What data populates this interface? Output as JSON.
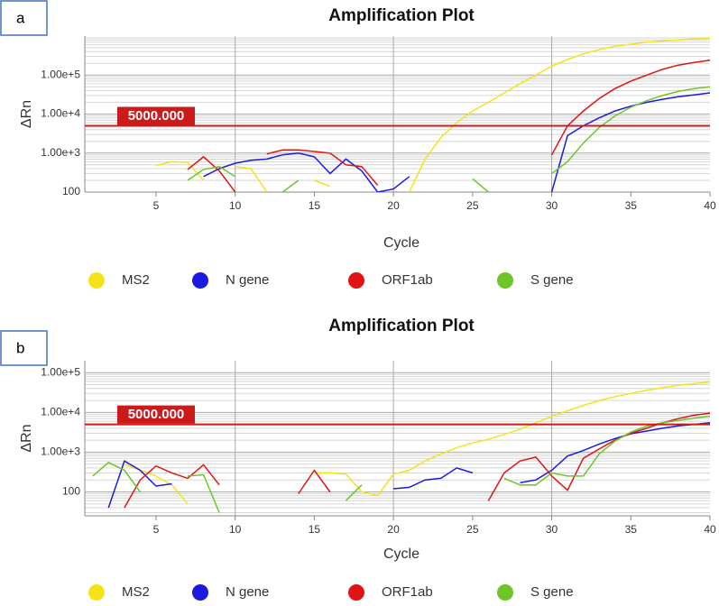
{
  "chart_data": [
    {
      "type": "line",
      "panel": "a",
      "title": "Amplification Plot",
      "xlabel": "Cycle",
      "ylabel": "ΔRn",
      "log_y": true,
      "grid": true,
      "legend": "bottom",
      "xlim": [
        0.5,
        40
      ],
      "xticks": [
        5,
        10,
        15,
        20,
        25,
        30,
        35,
        40
      ],
      "xgrid": [
        10,
        20,
        30
      ],
      "ylim": [
        100,
        1000000
      ],
      "yticks": [
        100,
        {
          "value": 1000,
          "label": "1.00e+3"
        },
        {
          "value": 10000,
          "label": "1.00e+4"
        },
        {
          "value": 100000,
          "label": "1.00e+5"
        }
      ],
      "threshold": {
        "value": 5000,
        "label": "5000.000",
        "color": "#cc1a1a"
      },
      "x": [
        1,
        2,
        3,
        4,
        5,
        6,
        7,
        8,
        9,
        10,
        11,
        12,
        13,
        14,
        15,
        16,
        17,
        18,
        19,
        20,
        21,
        22,
        23,
        24,
        25,
        26,
        27,
        28,
        29,
        30,
        31,
        32,
        33,
        34,
        35,
        36,
        37,
        38,
        39,
        40
      ],
      "series": [
        {
          "name": "MS2",
          "color": "#f5e31a",
          "values": [
            null,
            null,
            null,
            null,
            480,
            600,
            580,
            200,
            null,
            450,
            400,
            100,
            null,
            null,
            200,
            140,
            null,
            null,
            null,
            null,
            100,
            700,
            2500,
            6000,
            12000,
            20000,
            35000,
            60000,
            100000,
            170000,
            250000,
            350000,
            450000,
            550000,
            620000,
            700000,
            750000,
            800000,
            850000,
            880000
          ]
        },
        {
          "name": "N gene",
          "color": "#1a1ae0",
          "values": [
            null,
            null,
            null,
            null,
            null,
            null,
            null,
            250,
            400,
            550,
            650,
            700,
            900,
            1000,
            800,
            300,
            700,
            350,
            100,
            120,
            250,
            null,
            null,
            null,
            null,
            null,
            null,
            null,
            null,
            100,
            2800,
            5000,
            8000,
            12000,
            16000,
            20000,
            24000,
            28000,
            31000,
            35000
          ]
        },
        {
          "name": "ORF1ab",
          "color": "#e01414",
          "values": [
            null,
            null,
            null,
            null,
            null,
            null,
            380,
            800,
            350,
            100,
            null,
            950,
            1200,
            1200,
            1100,
            1000,
            500,
            450,
            150,
            null,
            null,
            null,
            null,
            null,
            null,
            null,
            null,
            null,
            null,
            900,
            5000,
            12000,
            25000,
            45000,
            70000,
            100000,
            140000,
            180000,
            210000,
            240000
          ]
        },
        {
          "name": "S gene",
          "color": "#6cc62a",
          "values": [
            null,
            null,
            null,
            null,
            null,
            null,
            200,
            380,
            450,
            250,
            null,
            null,
            100,
            200,
            null,
            null,
            null,
            null,
            null,
            null,
            null,
            null,
            null,
            null,
            220,
            100,
            null,
            null,
            null,
            300,
            600,
            1800,
            4500,
            9000,
            15000,
            22000,
            30000,
            38000,
            45000,
            50000
          ]
        }
      ]
    },
    {
      "type": "line",
      "panel": "b",
      "title": "Amplification Plot",
      "xlabel": "Cycle",
      "ylabel": "ΔRn",
      "log_y": true,
      "grid": true,
      "legend": "bottom",
      "xlim": [
        0.5,
        40
      ],
      "xticks": [
        5,
        10,
        15,
        20,
        25,
        30,
        35,
        40
      ],
      "xgrid": [
        10,
        20,
        30
      ],
      "ylim": [
        25,
        200000
      ],
      "yticks": [
        100,
        {
          "value": 1000,
          "label": "1.00e+3"
        },
        {
          "value": 10000,
          "label": "1.00e+4"
        },
        {
          "value": 100000,
          "label": "1.00e+5"
        }
      ],
      "threshold": {
        "value": 5000,
        "label": "5000.000",
        "color": "#cc1a1a"
      },
      "x": [
        1,
        2,
        3,
        4,
        5,
        6,
        7,
        8,
        9,
        10,
        11,
        12,
        13,
        14,
        15,
        16,
        17,
        18,
        19,
        20,
        21,
        22,
        23,
        24,
        25,
        26,
        27,
        28,
        29,
        30,
        31,
        32,
        33,
        34,
        35,
        36,
        37,
        38,
        39,
        40
      ],
      "series": [
        {
          "name": "MS2",
          "color": "#f5e31a",
          "values": [
            null,
            null,
            500,
            350,
            250,
            150,
            50,
            null,
            null,
            null,
            null,
            null,
            null,
            null,
            300,
            300,
            280,
            100,
            80,
            280,
            350,
            600,
            900,
            1300,
            1700,
            2100,
            2800,
            3800,
            5500,
            8000,
            11000,
            15000,
            20000,
            25000,
            30000,
            36000,
            42000,
            48000,
            53000,
            58000
          ]
        },
        {
          "name": "N gene",
          "color": "#1a1ae0",
          "values": [
            null,
            40,
            600,
            350,
            140,
            160,
            null,
            null,
            null,
            null,
            null,
            null,
            null,
            null,
            null,
            null,
            null,
            null,
            null,
            120,
            130,
            200,
            220,
            400,
            300,
            null,
            null,
            170,
            200,
            350,
            800,
            1100,
            1600,
            2200,
            2900,
            3400,
            4000,
            4600,
            5000,
            5500
          ]
        },
        {
          "name": "ORF1ab",
          "color": "#e01414",
          "values": [
            null,
            null,
            40,
            200,
            450,
            300,
            220,
            480,
            150,
            null,
            null,
            null,
            null,
            90,
            350,
            100,
            null,
            null,
            null,
            null,
            null,
            null,
            null,
            null,
            null,
            60,
            300,
            600,
            750,
            250,
            110,
            700,
            1200,
            2000,
            3000,
            4000,
            5500,
            7000,
            8500,
            9500
          ]
        },
        {
          "name": "S gene",
          "color": "#6cc62a",
          "values": [
            250,
            550,
            350,
            100,
            null,
            null,
            250,
            270,
            30,
            null,
            null,
            null,
            null,
            null,
            null,
            null,
            60,
            150,
            null,
            null,
            null,
            null,
            null,
            null,
            null,
            null,
            220,
            150,
            150,
            300,
            250,
            250,
            900,
            1900,
            3200,
            4500,
            5500,
            6300,
            7200,
            8000
          ]
        }
      ]
    }
  ]
}
